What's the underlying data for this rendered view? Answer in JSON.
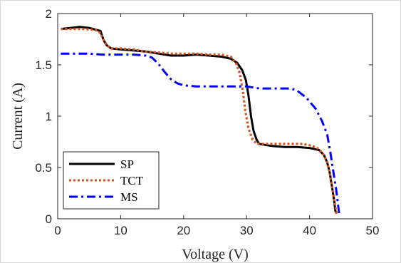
{
  "chart_data": {
    "type": "line",
    "title": "",
    "xlabel": "Voltage (V)",
    "ylabel": "Current (A)",
    "xlim": [
      0,
      50
    ],
    "ylim": [
      0,
      2
    ],
    "x_ticks": [
      0,
      10,
      20,
      30,
      40,
      50
    ],
    "y_ticks": [
      0,
      0.5,
      1,
      1.5,
      2
    ],
    "x_tick_labels": [
      "0",
      "10",
      "20",
      "30",
      "40",
      "50"
    ],
    "y_tick_labels": [
      "0",
      "0.5",
      "1",
      "1.5",
      "2"
    ],
    "grid": false,
    "legend_position": "bottom-left",
    "series": [
      {
        "name": "SP",
        "color": "#000000",
        "style": "solid",
        "points": [
          [
            0.5,
            1.85
          ],
          [
            2,
            1.86
          ],
          [
            3.5,
            1.87
          ],
          [
            5,
            1.86
          ],
          [
            6.8,
            1.83
          ],
          [
            7.3,
            1.74
          ],
          [
            7.8,
            1.69
          ],
          [
            8.5,
            1.66
          ],
          [
            10,
            1.65
          ],
          [
            12,
            1.64
          ],
          [
            14,
            1.63
          ],
          [
            16,
            1.61
          ],
          [
            18,
            1.59
          ],
          [
            20,
            1.59
          ],
          [
            22,
            1.6
          ],
          [
            24,
            1.59
          ],
          [
            26,
            1.58
          ],
          [
            27.5,
            1.56
          ],
          [
            28.5,
            1.52
          ],
          [
            29.3,
            1.45
          ],
          [
            29.9,
            1.35
          ],
          [
            30.3,
            1.2
          ],
          [
            30.7,
            1.0
          ],
          [
            31.1,
            0.86
          ],
          [
            31.6,
            0.77
          ],
          [
            32,
            0.73
          ],
          [
            34,
            0.71
          ],
          [
            36,
            0.7
          ],
          [
            38,
            0.7
          ],
          [
            40,
            0.69
          ],
          [
            41.5,
            0.67
          ],
          [
            42.3,
            0.62
          ],
          [
            42.8,
            0.55
          ],
          [
            43.2,
            0.45
          ],
          [
            43.6,
            0.3
          ],
          [
            43.9,
            0.18
          ],
          [
            44.1,
            0.08
          ],
          [
            44.3,
            0.05
          ]
        ]
      },
      {
        "name": "TCT",
        "color": "#d95319",
        "style": "dotted",
        "points": [
          [
            0.5,
            1.85
          ],
          [
            2,
            1.85
          ],
          [
            4,
            1.85
          ],
          [
            6,
            1.84
          ],
          [
            6.8,
            1.81
          ],
          [
            7.3,
            1.74
          ],
          [
            7.8,
            1.69
          ],
          [
            8.5,
            1.66
          ],
          [
            10,
            1.66
          ],
          [
            12,
            1.65
          ],
          [
            14,
            1.63
          ],
          [
            16,
            1.62
          ],
          [
            18,
            1.61
          ],
          [
            20,
            1.61
          ],
          [
            22,
            1.61
          ],
          [
            24,
            1.6
          ],
          [
            26,
            1.6
          ],
          [
            27.5,
            1.58
          ],
          [
            28.3,
            1.52
          ],
          [
            28.9,
            1.42
          ],
          [
            29.4,
            1.25
          ],
          [
            29.8,
            1.05
          ],
          [
            30.3,
            0.88
          ],
          [
            30.9,
            0.78
          ],
          [
            31.6,
            0.73
          ],
          [
            33,
            0.73
          ],
          [
            35,
            0.73
          ],
          [
            37,
            0.73
          ],
          [
            39,
            0.73
          ],
          [
            40.5,
            0.71
          ],
          [
            41.5,
            0.68
          ],
          [
            42.3,
            0.62
          ],
          [
            42.8,
            0.55
          ],
          [
            43.2,
            0.45
          ],
          [
            43.6,
            0.3
          ],
          [
            44,
            0.15
          ],
          [
            44.3,
            0.05
          ]
        ]
      },
      {
        "name": "MS",
        "color": "#0000ff",
        "style": "dashdot",
        "points": [
          [
            0.5,
            1.61
          ],
          [
            3,
            1.61
          ],
          [
            5,
            1.61
          ],
          [
            7,
            1.6
          ],
          [
            10,
            1.6
          ],
          [
            12,
            1.6
          ],
          [
            14,
            1.59
          ],
          [
            15,
            1.57
          ],
          [
            16,
            1.51
          ],
          [
            17,
            1.43
          ],
          [
            18,
            1.36
          ],
          [
            19,
            1.32
          ],
          [
            20,
            1.3
          ],
          [
            22,
            1.29
          ],
          [
            25,
            1.29
          ],
          [
            28,
            1.29
          ],
          [
            30,
            1.29
          ],
          [
            31,
            1.28
          ],
          [
            32,
            1.27
          ],
          [
            35,
            1.27
          ],
          [
            37,
            1.27
          ],
          [
            38,
            1.25
          ],
          [
            39.5,
            1.18
          ],
          [
            41,
            1.07
          ],
          [
            42,
            0.95
          ],
          [
            42.8,
            0.82
          ],
          [
            43.3,
            0.65
          ],
          [
            43.8,
            0.45
          ],
          [
            44.2,
            0.3
          ],
          [
            44.5,
            0.15
          ],
          [
            44.7,
            0.05
          ]
        ]
      }
    ]
  }
}
